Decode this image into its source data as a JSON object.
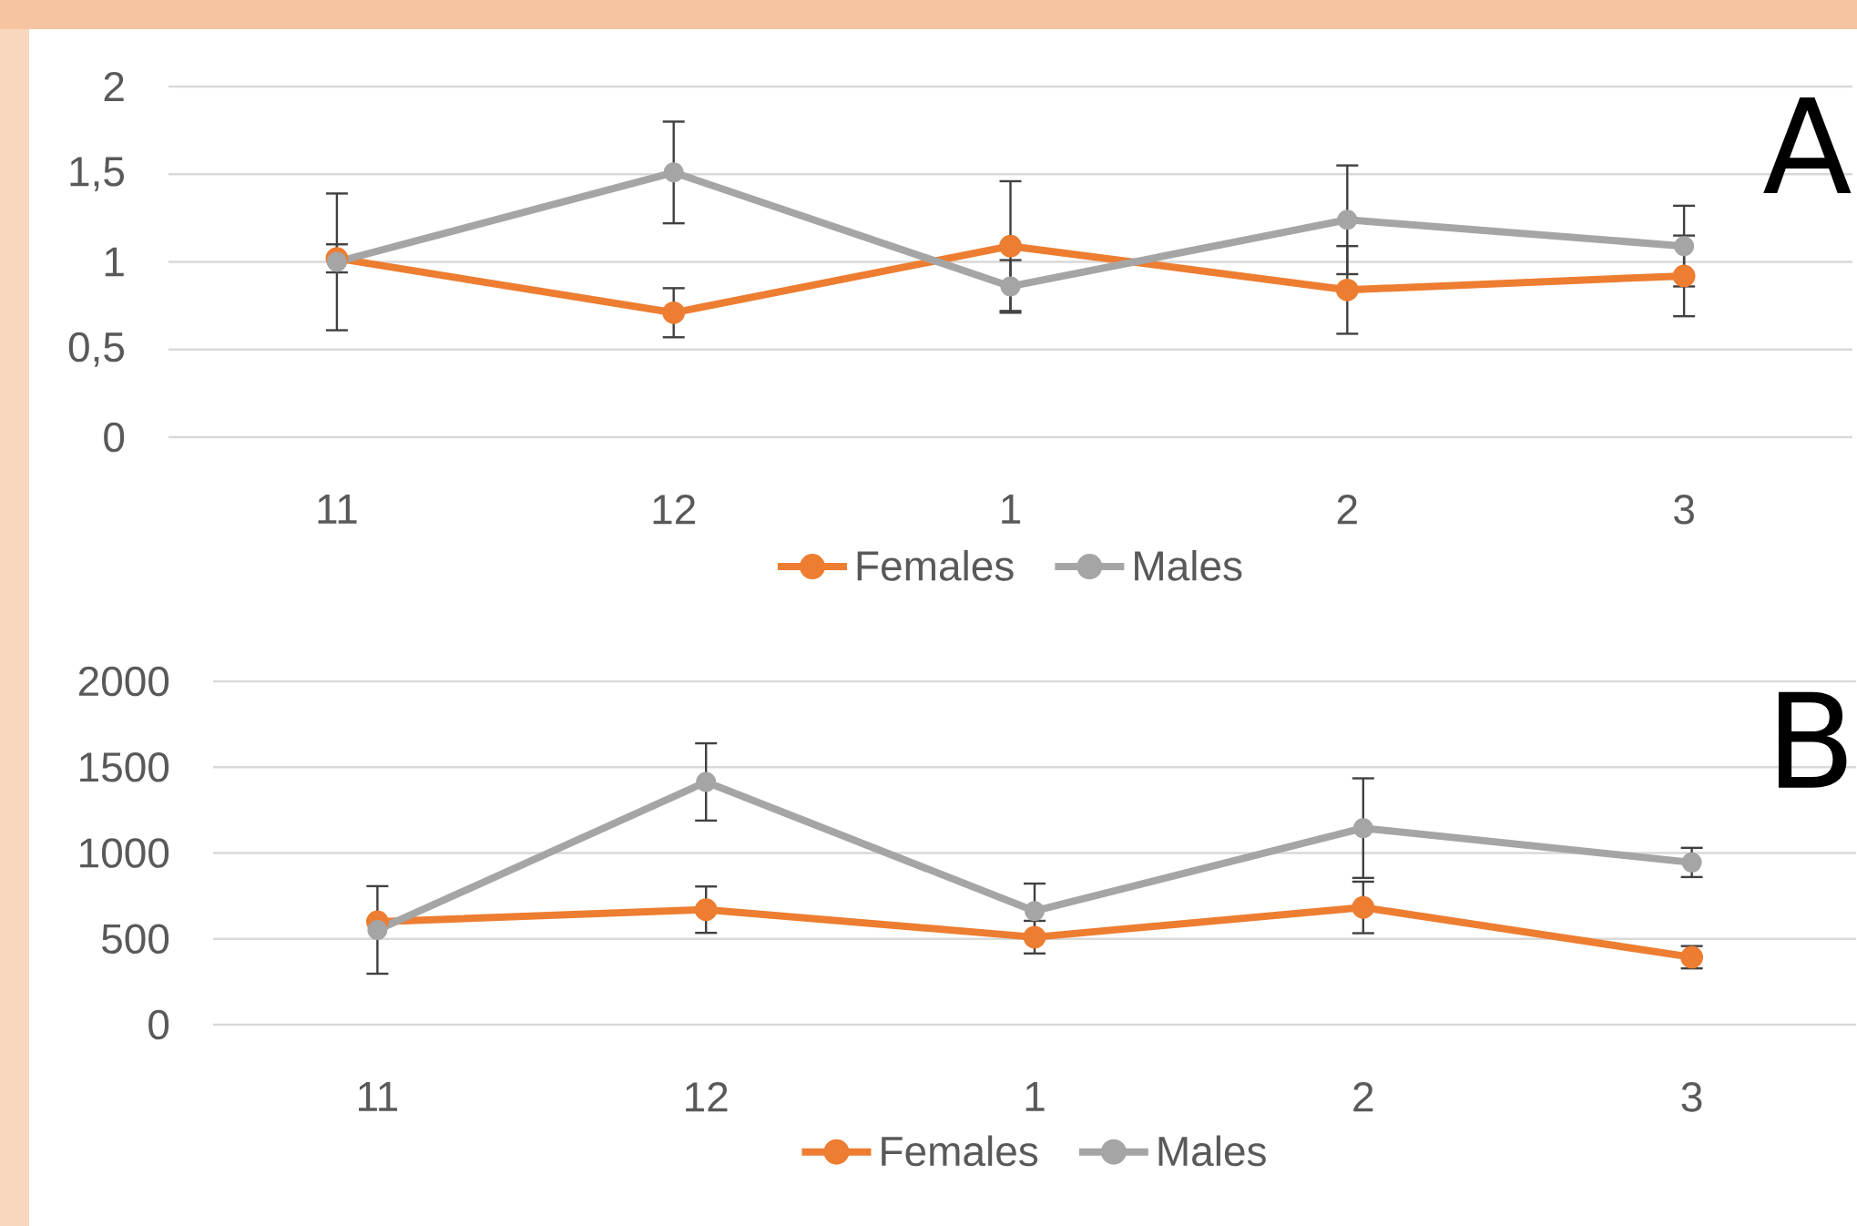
{
  "chart_data": [
    {
      "type": "line",
      "categories": [
        "11",
        "12",
        "1",
        "2",
        "3"
      ],
      "series": [
        {
          "name": "Females",
          "color": "#ed7d31",
          "values": [
            1.02,
            0.71,
            1.09,
            0.84,
            0.92
          ],
          "errors": [
            0.08,
            0.14,
            0.37,
            0.25,
            0.23
          ]
        },
        {
          "name": "Males",
          "color": "#a5a5a5",
          "values": [
            1.0,
            1.51,
            0.86,
            1.24,
            1.09
          ],
          "errors": [
            0.39,
            0.29,
            0.15,
            0.31,
            0.23
          ]
        }
      ],
      "ylim": [
        0,
        2
      ],
      "yticks": [
        0,
        {
          "value": 0.5,
          "label": "0,5"
        },
        1,
        {
          "value": 1.5,
          "label": "1,5"
        },
        2
      ],
      "grid": "y",
      "legend": "bottom",
      "marker": "circle",
      "line_style": "solid",
      "annotations": [
        "A"
      ]
    },
    {
      "type": "line",
      "categories": [
        "11",
        "12",
        "1",
        "2",
        "3"
      ],
      "series": [
        {
          "name": "Females",
          "color": "#ed7d31",
          "values": [
            600,
            670,
            510,
            683,
            393
          ],
          "errors": [
            null,
            135,
            95,
            150,
            65
          ]
        },
        {
          "name": "Males",
          "color": "#a5a5a5",
          "values": [
            552,
            1414,
            662,
            1145,
            945
          ],
          "errors": [
            255,
            225,
            160,
            290,
            85
          ]
        }
      ],
      "ylim": [
        0,
        2000
      ],
      "yticks": [
        0,
        500,
        1000,
        1500,
        2000
      ],
      "grid": "y",
      "legend": "bottom",
      "marker": "circle",
      "line_style": "solid",
      "annotations": [
        "B"
      ]
    }
  ]
}
